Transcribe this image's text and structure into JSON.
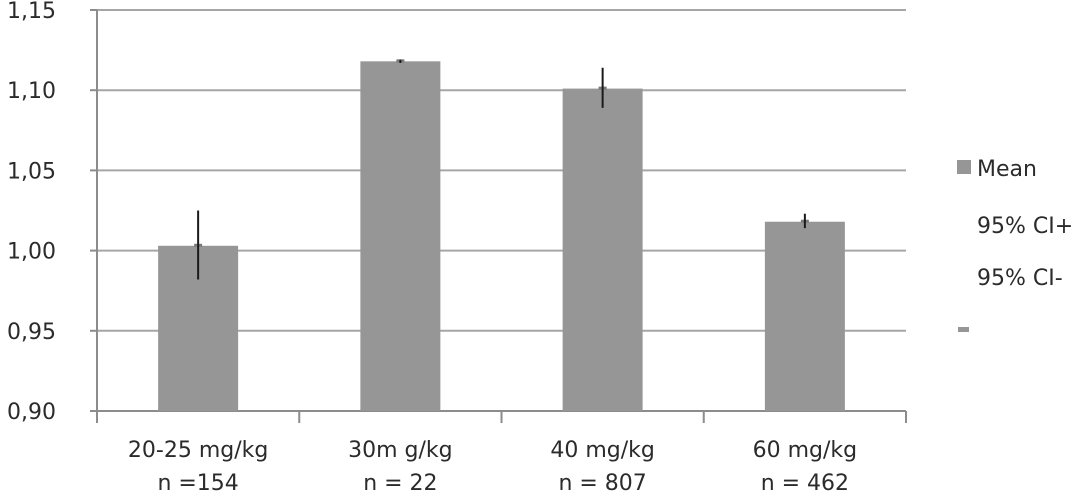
{
  "chart_data": {
    "type": "bar",
    "categories": [
      [
        "20-25 mg/kg",
        "n =154"
      ],
      [
        "30m g/kg",
        "n = 22"
      ],
      [
        "40 mg/kg",
        "n = 807"
      ],
      [
        "60 mg/kg",
        "n = 462"
      ]
    ],
    "series": [
      {
        "name": "Mean",
        "values": [
          1.003,
          1.118,
          1.101,
          1.018
        ]
      }
    ],
    "ci_upper": [
      1.025,
      1.119,
      1.114,
      1.023
    ],
    "ci_lower": [
      0.982,
      1.117,
      1.089,
      1.014
    ],
    "ylim": [
      0.9,
      1.15
    ],
    "yticks": [
      "0,90",
      "0,95",
      "1,00",
      "1,05",
      "1,10",
      "1,15"
    ],
    "ytick_values": [
      0.9,
      0.95,
      1.0,
      1.05,
      1.1,
      1.15
    ],
    "grid": true,
    "legend": {
      "position": "right",
      "entries": [
        "Mean",
        "95% CI+",
        "95% CI-",
        ""
      ]
    },
    "colors": {
      "bar": "#969696",
      "grid": "#a6a6a6",
      "axis": "#8c8c8c",
      "error": "#1a1a1a"
    }
  }
}
